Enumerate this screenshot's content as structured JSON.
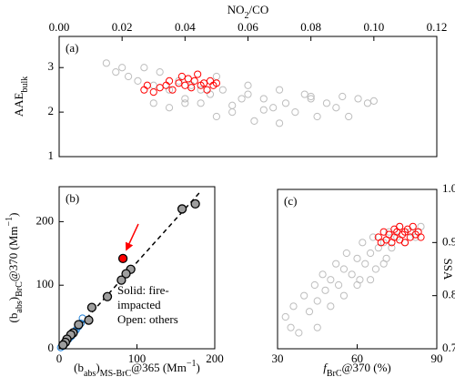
{
  "chart_data": [
    {
      "type": "scatter",
      "panel_label": "(a)",
      "xaxis_position": "top",
      "yaxis_position": "left",
      "xlabel_parts": [
        {
          "text": "NO"
        },
        {
          "text": "2",
          "script": "sub"
        },
        {
          "text": "/CO"
        }
      ],
      "ylabel_parts": [
        {
          "text": "AAE"
        },
        {
          "text": "bulk",
          "script": "sub"
        }
      ],
      "xlim": [
        0,
        0.12
      ],
      "xticks": [
        {
          "value": 0,
          "label": "0.00"
        },
        {
          "value": 0.02,
          "label": "0.02"
        },
        {
          "value": 0.04,
          "label": "0.04"
        },
        {
          "value": 0.06,
          "label": "0.06"
        },
        {
          "value": 0.08,
          "label": "0.08"
        },
        {
          "value": 0.1,
          "label": "0.10"
        },
        {
          "value": 0.12,
          "label": "0.12"
        }
      ],
      "ylim": [
        1,
        3.7
      ],
      "yticks": [
        1,
        2,
        3
      ],
      "series": [
        {
          "color": "#bdbdbd",
          "filled": false,
          "x": [
            0.015,
            0.018,
            0.02,
            0.022,
            0.025,
            0.027,
            0.03,
            0.032,
            0.035,
            0.038,
            0.04,
            0.042,
            0.045,
            0.048,
            0.05,
            0.052,
            0.055,
            0.058,
            0.06,
            0.062,
            0.065,
            0.068,
            0.07,
            0.072,
            0.075,
            0.078,
            0.08,
            0.082,
            0.085,
            0.088,
            0.09,
            0.092,
            0.095,
            0.098,
            0.1,
            0.05,
            0.045,
            0.06,
            0.07,
            0.04,
            0.055,
            0.065,
            0.08,
            0.035,
            0.03
          ],
          "values": [
            3.1,
            2.9,
            3.0,
            2.8,
            2.7,
            3.0,
            2.6,
            2.9,
            2.5,
            2.7,
            2.3,
            2.6,
            2.2,
            2.4,
            1.9,
            2.5,
            2.0,
            2.3,
            2.4,
            1.8,
            2.3,
            2.1,
            2.5,
            2.2,
            2.0,
            2.4,
            2.3,
            1.9,
            2.2,
            2.1,
            2.35,
            1.9,
            2.3,
            2.2,
            2.25,
            2.8,
            2.5,
            2.6,
            1.75,
            2.2,
            2.15,
            2.05,
            2.35,
            2.1,
            2.2
          ]
        },
        {
          "color": "#ff0000",
          "filled": false,
          "x": [
            0.027,
            0.028,
            0.03,
            0.032,
            0.034,
            0.035,
            0.036,
            0.038,
            0.039,
            0.04,
            0.041,
            0.042,
            0.043,
            0.044,
            0.045,
            0.046,
            0.047,
            0.048,
            0.049,
            0.05
          ],
          "values": [
            2.5,
            2.6,
            2.45,
            2.55,
            2.6,
            2.7,
            2.5,
            2.65,
            2.8,
            2.6,
            2.75,
            2.55,
            2.7,
            2.85,
            2.6,
            2.65,
            2.5,
            2.7,
            2.6,
            2.65
          ]
        }
      ]
    },
    {
      "type": "scatter",
      "panel_label": "(b)",
      "xaxis_position": "bottom",
      "yaxis_position": "left",
      "xlabel_parts": [
        {
          "text": "(b"
        },
        {
          "text": "abs",
          "script": "sub"
        },
        {
          "text": ")"
        },
        {
          "text": "MS-BrC",
          "script": "sub"
        },
        {
          "text": "@365 (Mm"
        },
        {
          "text": "−1",
          "script": "sup"
        },
        {
          "text": ")"
        }
      ],
      "ylabel_parts": [
        {
          "text": "(b"
        },
        {
          "text": "abs",
          "script": "sub"
        },
        {
          "text": ")"
        },
        {
          "text": "BrC",
          "script": "sub"
        },
        {
          "text": "@370 (Mm"
        },
        {
          "text": "−1",
          "script": "sup"
        },
        {
          "text": ")"
        }
      ],
      "xlim": [
        0,
        200
      ],
      "xticks": [
        0,
        100,
        200
      ],
      "ylim": [
        0,
        255
      ],
      "yticks": [
        0,
        100,
        200
      ],
      "annotations": [
        {
          "text": "Solid: fire-",
          "color": "#000000"
        },
        {
          "text": "impacted",
          "color": "#000000"
        },
        {
          "text": "Open: others",
          "color": "#1e7fd6"
        }
      ],
      "series": [
        {
          "color": "#000000",
          "dash": true,
          "line": true,
          "x": [
            0,
            180
          ],
          "values": [
            0,
            245
          ]
        },
        {
          "color": "#1e7fd6",
          "filled": false,
          "x": [
            2,
            4,
            5,
            7,
            8,
            10,
            12,
            14,
            16,
            18,
            20,
            22,
            25,
            28,
            30
          ],
          "values": [
            2,
            5,
            4,
            8,
            10,
            12,
            15,
            18,
            20,
            24,
            27,
            30,
            35,
            40,
            48
          ]
        },
        {
          "color": "#000000",
          "fill": "#9e9e9e",
          "filled": true,
          "x": [
            175,
            158,
            92,
            86,
            80,
            62,
            42,
            38,
            25,
            18,
            15,
            10,
            8,
            5
          ],
          "values": [
            228,
            220,
            125,
            118,
            108,
            82,
            65,
            45,
            38,
            25,
            22,
            15,
            10,
            6
          ]
        },
        {
          "color": "#000000",
          "fill": "#ff0000",
          "filled": true,
          "x": [
            82
          ],
          "values": [
            142
          ]
        }
      ]
    },
    {
      "type": "scatter",
      "panel_label": "(c)",
      "xaxis_position": "bottom",
      "yaxis_position": "right",
      "xlabel_parts": [
        {
          "text": "f",
          "style": "italic"
        },
        {
          "text": "BrC",
          "script": "sub"
        },
        {
          "text": "@370 (%)"
        }
      ],
      "ylabel_parts": [
        {
          "text": "SSA"
        }
      ],
      "xlim": [
        30,
        90
      ],
      "xticks": [
        30,
        60,
        90
      ],
      "ylim": [
        0.7,
        1.0
      ],
      "yticks": [
        0.7,
        0.8,
        0.9,
        {
          "value": 1.0,
          "label": "1.0"
        }
      ],
      "series": [
        {
          "color": "#bdbdbd",
          "filled": false,
          "x": [
            33,
            35,
            36,
            38,
            40,
            42,
            44,
            45,
            47,
            48,
            50,
            52,
            53,
            55,
            56,
            58,
            60,
            61,
            62,
            63,
            65,
            66,
            67,
            68,
            70,
            71,
            72,
            73,
            75,
            76,
            78,
            80,
            82,
            84,
            45,
            50,
            55,
            60,
            65,
            70
          ],
          "values": [
            0.76,
            0.74,
            0.78,
            0.73,
            0.8,
            0.77,
            0.82,
            0.79,
            0.84,
            0.81,
            0.83,
            0.86,
            0.82,
            0.85,
            0.88,
            0.84,
            0.87,
            0.83,
            0.9,
            0.86,
            0.88,
            0.91,
            0.85,
            0.89,
            0.9,
            0.87,
            0.92,
            0.89,
            0.91,
            0.93,
            0.9,
            0.92,
            0.91,
            0.93,
            0.74,
            0.78,
            0.8,
            0.82,
            0.83,
            0.86
          ]
        },
        {
          "color": "#ff0000",
          "filled": false,
          "x": [
            68,
            69,
            70,
            71,
            72,
            73,
            74,
            74,
            75,
            76,
            76,
            77,
            78,
            78,
            79,
            80,
            81,
            82,
            83,
            84
          ],
          "values": [
            0.91,
            0.9,
            0.92,
            0.905,
            0.915,
            0.9,
            0.925,
            0.91,
            0.92,
            0.905,
            0.93,
            0.915,
            0.92,
            0.9,
            0.925,
            0.91,
            0.93,
            0.915,
            0.92,
            0.91
          ]
        }
      ]
    }
  ]
}
